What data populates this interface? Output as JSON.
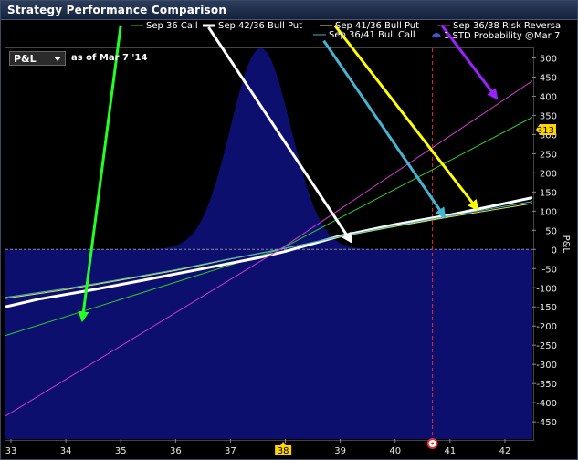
{
  "window": {
    "title": "Strategy Performance Comparison"
  },
  "controls": {
    "metric_selected": "P&L",
    "as_of": "as of Mar 7 '14"
  },
  "chart_data": {
    "type": "line",
    "title": "",
    "xlabel": "",
    "ylabel": "P&L",
    "xlim": [
      32.9,
      42.5
    ],
    "ylim": [
      -495,
      525
    ],
    "x_ticks": [
      33,
      34,
      35,
      36,
      37,
      38,
      39,
      40,
      41,
      42
    ],
    "x_tick_labels": [
      "33",
      "34",
      "35",
      "36",
      "37",
      "38",
      "39",
      "40",
      "41",
      "42"
    ],
    "y_ticks": [
      -450,
      -400,
      -350,
      -300,
      -250,
      -200,
      -150,
      -100,
      -50,
      0,
      50,
      100,
      150,
      200,
      250,
      300,
      350,
      400,
      450,
      500
    ],
    "y_tick_labels": [
      "-450",
      "-400",
      "-350",
      "-300",
      "-250",
      "-200",
      "-150",
      "-100",
      "-50",
      "0",
      "50",
      "100",
      "150",
      "200",
      "250",
      "300",
      "350",
      "400",
      "450",
      "500"
    ],
    "grid": false,
    "legend_placement": "top",
    "current_price_marker": {
      "x": 37.96,
      "label": "38",
      "color": "#ffd400"
    },
    "current_pnl_marker": {
      "y": 313,
      "label": "313",
      "color": "#ffd400"
    },
    "reference_line_x": 40.68,
    "series": [
      {
        "name": "Sep 36 Call",
        "color": "#2ecc2e",
        "width": 1,
        "x": [
          32.9,
          37.9,
          42.5
        ],
        "y": [
          -225,
          0,
          345
        ]
      },
      {
        "name": "Sep 42/36 Bull Put",
        "color": "#ffffff",
        "width": 3,
        "x": [
          32.9,
          33.5,
          34.5,
          35.5,
          36.5,
          37.5,
          38,
          39,
          40,
          41,
          42.5
        ],
        "y": [
          -150,
          -130,
          -105,
          -78,
          -50,
          -22,
          -5,
          35,
          65,
          90,
          135
        ]
      },
      {
        "name": "Sep 41/36 Bull Put",
        "color": "#e8e84a",
        "width": 1,
        "x": [
          32.9,
          34,
          35,
          36,
          37,
          37.9,
          39,
          40,
          41,
          42.5
        ],
        "y": [
          -128,
          -105,
          -80,
          -55,
          -25,
          0,
          33,
          60,
          85,
          120
        ]
      },
      {
        "name": "Sep 36/41 Bull Call",
        "color": "#45b5c8",
        "width": 1,
        "x": [
          32.9,
          34,
          35,
          36,
          37,
          37.9,
          39,
          40,
          41,
          42.5
        ],
        "y": [
          -125,
          -102,
          -78,
          -53,
          -24,
          0,
          34,
          62,
          88,
          125
        ]
      },
      {
        "name": "Sep 36/38 Risk Reversal",
        "color": "#d23ad2",
        "width": 1,
        "x": [
          32.9,
          37.9,
          42.5
        ],
        "y": [
          -435,
          0,
          440
        ]
      }
    ],
    "distribution": {
      "name": "1 STD Probability @Mar 7",
      "color": "#0c0f6e",
      "mean": 37.55,
      "std": 0.55,
      "peak": 525
    },
    "annotation_arrows": [
      {
        "color": "#22ff22",
        "from": [
          35.0,
          585
        ],
        "to": [
          34.3,
          -185
        ]
      },
      {
        "color": "#ffffff",
        "from": [
          36.6,
          580
        ],
        "to": [
          39.2,
          20
        ]
      },
      {
        "color": "#ffff00",
        "from": [
          38.9,
          585
        ],
        "to": [
          41.5,
          105
        ]
      },
      {
        "color": "#44b4d0",
        "from": [
          38.7,
          545
        ],
        "to": [
          40.9,
          85
        ]
      },
      {
        "color": "#9a22ff",
        "from": [
          40.85,
          585
        ],
        "to": [
          41.85,
          395
        ]
      }
    ]
  }
}
